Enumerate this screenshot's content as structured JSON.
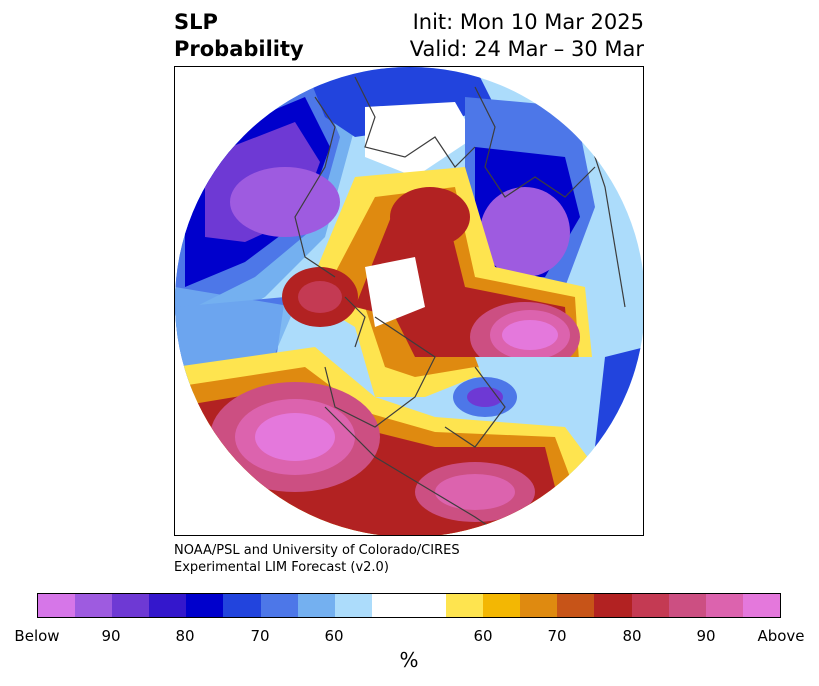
{
  "title": {
    "left": "SLP\nProbability",
    "right_line1": "Init: Mon 10 Mar 2025",
    "right_line2": "Valid: 24 Mar – 30 Mar"
  },
  "credit": {
    "line1": "NOAA/PSL and University of Colorado/CIRES",
    "line2": "Experimental LIM Forecast (v2.0)"
  },
  "colorbar": {
    "unit": "%",
    "colors": [
      "#d676e8",
      "#9e5be0",
      "#6e39d4",
      "#3417cc",
      "#0000cc",
      "#2244dd",
      "#4d77e8",
      "#74b0f0",
      "#acdcfb",
      "#ffffff",
      "#fee44f",
      "#f3b703",
      "#df8a10",
      "#c75418",
      "#b22222",
      "#c43a53",
      "#cc4f82",
      "#dc63ae",
      "#e478dc"
    ],
    "ticks": [
      "Below",
      "90",
      "80",
      "70",
      "60",
      "60",
      "70",
      "80",
      "90",
      "Above"
    ]
  },
  "colors": {
    "land_outline": "#3d3d3d",
    "blue_strong": "#0000cc",
    "purple": "#9e5be0",
    "red": "#b22222",
    "pink": "#dc63ae"
  }
}
